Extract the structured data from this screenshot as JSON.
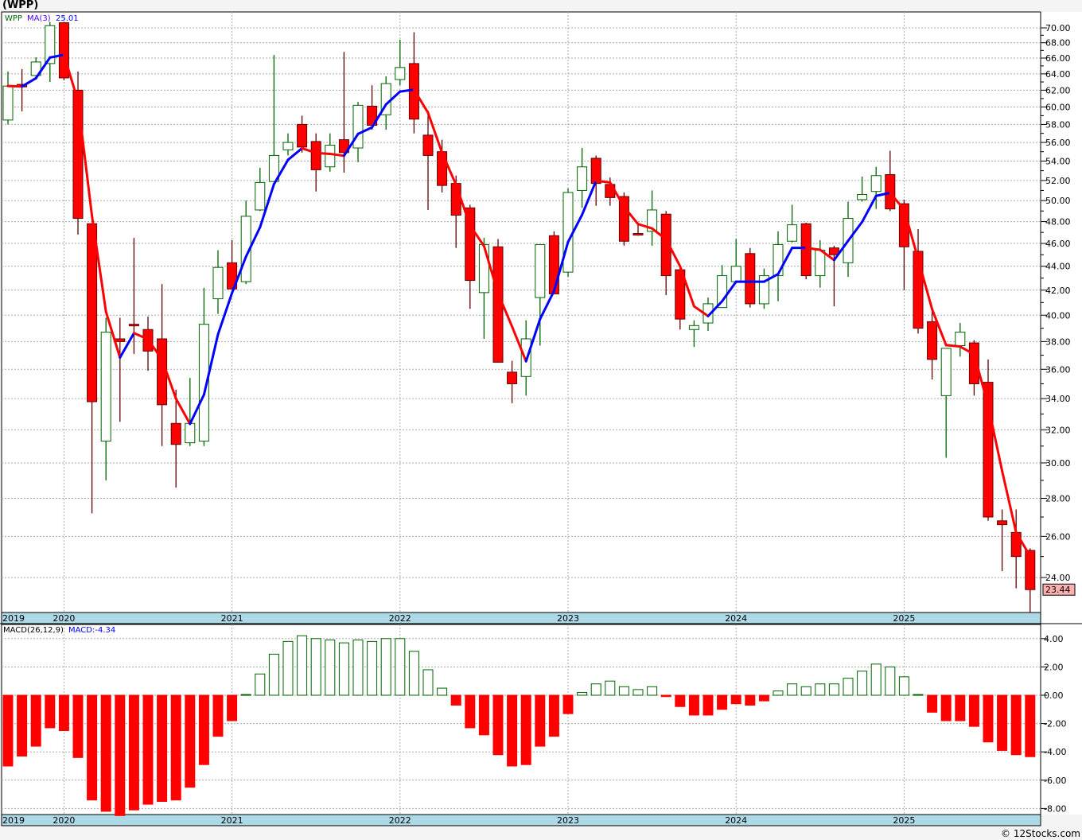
{
  "title": "(WPP)",
  "credit": "© 12Stocks.com",
  "colors": {
    "up": "#006400",
    "down": "#ff0000",
    "down_edge": "#600000",
    "ma_up": "#0000ff",
    "ma_down": "#ff0000",
    "band": "#add8e6",
    "last_tag": "#ffb0b0"
  },
  "chart_data": [
    {
      "type": "candlestick",
      "title": "(WPP)",
      "legend": {
        "symbol": "WPP",
        "ma_label": "MA(3)",
        "ma_value": "25.01"
      },
      "scale": "log",
      "ylim": [
        22.2,
        71.5
      ],
      "yticks": [
        24,
        26,
        28,
        30,
        32,
        34,
        36,
        38,
        40,
        42,
        44,
        46,
        48,
        50,
        52,
        54,
        56,
        58,
        60,
        62,
        64,
        66,
        68,
        70
      ],
      "last_price": "23.44",
      "year_labels": [
        {
          "label": "2019",
          "index": -1
        },
        {
          "label": "2020",
          "index": 4
        },
        {
          "label": "2021",
          "index": 16
        },
        {
          "label": "2022",
          "index": 28
        },
        {
          "label": "2023",
          "index": 40
        },
        {
          "label": "2024",
          "index": 52
        },
        {
          "label": "2025",
          "index": 64
        }
      ],
      "ohlc": [
        [
          58.5,
          64.3,
          58.0,
          62.5
        ],
        [
          62.7,
          64.6,
          59.5,
          62.4
        ],
        [
          63.8,
          66.1,
          63.4,
          65.5
        ],
        [
          65.3,
          70.8,
          63.0,
          70.3
        ],
        [
          70.7,
          70.8,
          63.2,
          63.5
        ],
        [
          62.0,
          64.3,
          46.8,
          48.3
        ],
        [
          47.8,
          47.8,
          27.2,
          33.8
        ],
        [
          31.3,
          39.8,
          29.0,
          38.7
        ],
        [
          38.2,
          39.8,
          32.5,
          38.0
        ],
        [
          39.3,
          46.5,
          37.1,
          39.2
        ],
        [
          38.9,
          39.9,
          35.9,
          37.3
        ],
        [
          38.2,
          42.5,
          31.0,
          33.6
        ],
        [
          32.4,
          34.6,
          28.6,
          31.1
        ],
        [
          31.2,
          35.4,
          31.0,
          32.4
        ],
        [
          31.3,
          42.2,
          31.0,
          39.3
        ],
        [
          41.3,
          45.4,
          40.1,
          43.9
        ],
        [
          44.3,
          46.3,
          42.1,
          42.1
        ],
        [
          42.7,
          50.0,
          42.5,
          48.5
        ],
        [
          49.1,
          53.3,
          49.0,
          51.8
        ],
        [
          51.9,
          66.4,
          51.9,
          54.6
        ],
        [
          55.2,
          57.0,
          54.6,
          56.0
        ],
        [
          58.0,
          59.0,
          54.9,
          55.5
        ],
        [
          56.1,
          57.0,
          50.9,
          53.1
        ],
        [
          53.4,
          57.0,
          52.9,
          55.7
        ],
        [
          56.3,
          66.8,
          52.8,
          54.9
        ],
        [
          55.4,
          60.6,
          53.9,
          60.2
        ],
        [
          60.1,
          62.6,
          57.4,
          57.9
        ],
        [
          59.1,
          63.7,
          57.4,
          62.8
        ],
        [
          63.3,
          68.4,
          62.6,
          64.8
        ],
        [
          65.3,
          69.4,
          57.0,
          58.6
        ],
        [
          56.8,
          59.6,
          49.1,
          54.6
        ],
        [
          55.0,
          56.3,
          50.8,
          51.5
        ],
        [
          51.7,
          52.5,
          45.6,
          48.6
        ],
        [
          49.3,
          49.6,
          40.5,
          42.8
        ],
        [
          41.8,
          46.5,
          38.2,
          45.9
        ],
        [
          45.7,
          46.4,
          36.5,
          36.5
        ],
        [
          35.8,
          36.6,
          33.7,
          35.0
        ],
        [
          35.5,
          39.6,
          34.2,
          38.2
        ],
        [
          41.4,
          45.9,
          37.7,
          45.9
        ],
        [
          46.7,
          47.1,
          41.7,
          41.7
        ],
        [
          43.5,
          51.2,
          43.1,
          50.8
        ],
        [
          51.0,
          55.4,
          49.3,
          53.4
        ],
        [
          54.3,
          54.6,
          49.5,
          51.7
        ],
        [
          51.6,
          52.3,
          49.5,
          50.3
        ],
        [
          50.4,
          50.8,
          45.8,
          46.2
        ],
        [
          46.9,
          47.8,
          46.7,
          46.8
        ],
        [
          47.1,
          51.0,
          45.8,
          49.1
        ],
        [
          48.7,
          49.0,
          41.6,
          43.2
        ],
        [
          43.7,
          44.0,
          38.9,
          39.7
        ],
        [
          38.9,
          39.6,
          37.6,
          39.2
        ],
        [
          39.4,
          41.4,
          38.8,
          40.9
        ],
        [
          40.6,
          44.1,
          40.6,
          43.2
        ],
        [
          42.7,
          46.4,
          42.6,
          44.0
        ],
        [
          45.1,
          45.6,
          40.6,
          40.9
        ],
        [
          40.9,
          43.8,
          40.5,
          43.2
        ],
        [
          43.2,
          47.1,
          41.1,
          45.9
        ],
        [
          46.2,
          49.6,
          46.1,
          47.7
        ],
        [
          47.8,
          47.9,
          42.9,
          43.2
        ],
        [
          43.2,
          46.3,
          42.2,
          45.4
        ],
        [
          45.6,
          45.8,
          40.7,
          45.0
        ],
        [
          44.3,
          49.9,
          43.1,
          48.3
        ],
        [
          50.1,
          52.4,
          49.9,
          50.6
        ],
        [
          50.9,
          53.4,
          49.2,
          52.5
        ],
        [
          52.6,
          55.1,
          49.0,
          49.2
        ],
        [
          49.7,
          50.1,
          42.0,
          45.7
        ],
        [
          45.3,
          47.3,
          38.6,
          39.0
        ],
        [
          39.5,
          40.3,
          35.3,
          36.7
        ],
        [
          34.2,
          37.5,
          30.3,
          37.5
        ],
        [
          37.7,
          39.4,
          36.9,
          38.7
        ],
        [
          37.9,
          38.1,
          34.2,
          35.0
        ],
        [
          35.1,
          36.7,
          26.8,
          27.0
        ],
        [
          26.8,
          27.4,
          24.3,
          26.6
        ],
        [
          26.2,
          27.4,
          23.5,
          25.0
        ],
        [
          25.3,
          25.4,
          22.4,
          23.44
        ]
      ]
    },
    {
      "type": "bar",
      "title": "MACD",
      "legend": {
        "label": "MACD(26,12,9)",
        "value_label": "MACD:-4.34"
      },
      "ylim": [
        -8.6,
        4.6
      ],
      "yticks": [
        -8,
        -6,
        -4,
        -2,
        0,
        2,
        4
      ],
      "values": [
        -5.0,
        -4.3,
        -3.6,
        -2.3,
        -2.5,
        -4.4,
        -7.4,
        -8.2,
        -8.5,
        -8.1,
        -7.7,
        -7.5,
        -7.4,
        -6.5,
        -4.9,
        -2.9,
        -1.8,
        0.05,
        1.5,
        2.9,
        3.8,
        4.2,
        4.0,
        3.9,
        3.7,
        3.9,
        3.8,
        4.0,
        4.0,
        3.1,
        1.8,
        0.5,
        -0.7,
        -2.3,
        -2.8,
        -4.2,
        -5.0,
        -4.9,
        -3.6,
        -2.9,
        -1.3,
        0.2,
        0.8,
        1.0,
        0.6,
        0.4,
        0.6,
        -0.1,
        -0.8,
        -1.4,
        -1.4,
        -1.0,
        -0.6,
        -0.7,
        -0.4,
        0.3,
        0.8,
        0.6,
        0.8,
        0.8,
        1.2,
        1.7,
        2.2,
        2.0,
        1.3,
        0.05,
        -1.2,
        -1.8,
        -1.8,
        -2.2,
        -3.3,
        -3.9,
        -4.2,
        -4.34
      ]
    }
  ]
}
